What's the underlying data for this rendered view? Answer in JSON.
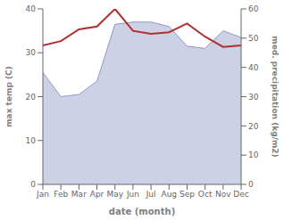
{
  "chart_data": {
    "type": "line",
    "xlabel": "date (month)",
    "ylabel": "max temp (C)",
    "y2label": "med. precipitation (kg/m2)",
    "categories": [
      "Jan",
      "Feb",
      "Mar",
      "Apr",
      "May",
      "Jun",
      "Jul",
      "Aug",
      "Sep",
      "Oct",
      "Nov",
      "Dec"
    ],
    "series": [
      {
        "type": "area",
        "color": "#9098c8",
        "values": [
          25.5,
          20.0,
          20.5,
          23.5,
          36.5,
          37.0,
          37.0,
          36.0,
          31.5,
          31.0,
          35.0,
          33.5
        ]
      },
      {
        "type": "line",
        "color": "#b03030",
        "axis": "y2",
        "values": [
          47.5,
          49.0,
          53.0,
          54.0,
          60.0,
          52.5,
          51.5,
          52.0,
          55.0,
          50.5,
          47.0,
          47.5
        ]
      }
    ],
    "ylim": [
      0,
      40
    ],
    "yticks": [
      0,
      10,
      20,
      30,
      40
    ],
    "y2lim": [
      0,
      60
    ],
    "y2ticks": [
      0,
      10,
      20,
      30,
      40,
      50,
      60
    ],
    "grid": false
  }
}
